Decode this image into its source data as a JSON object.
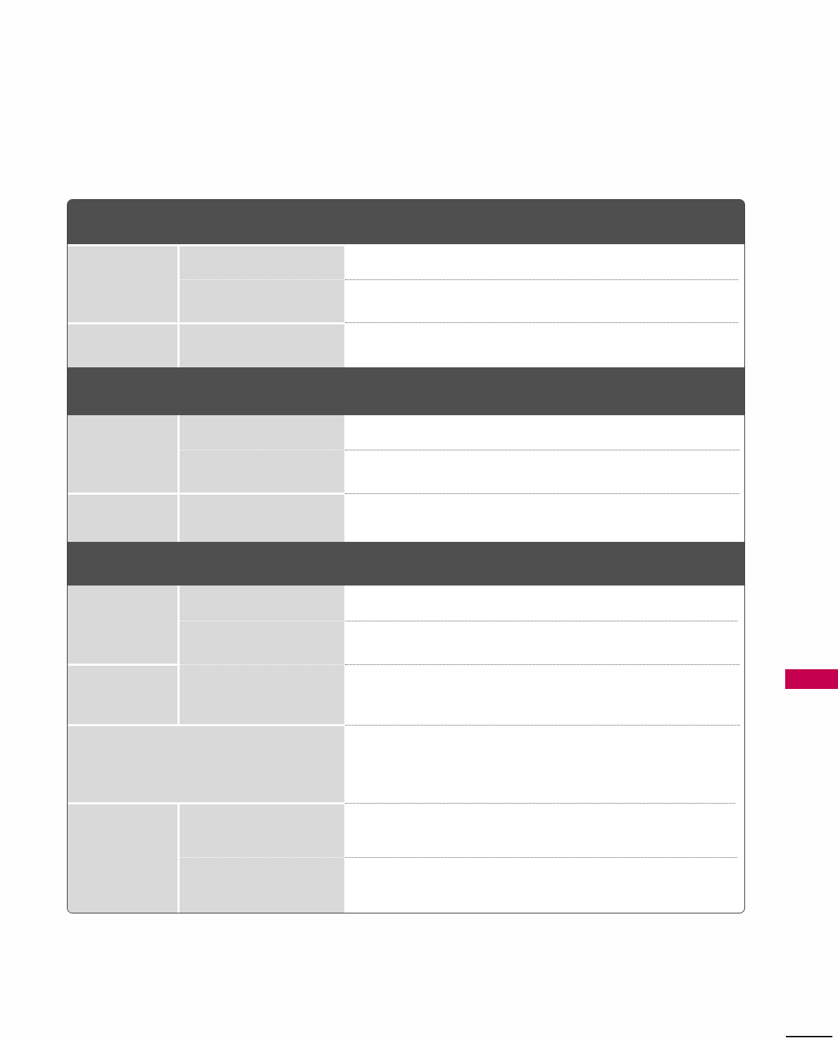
{
  "colors": {
    "section_header": "#4f4f4f",
    "label_cell": "#d9d9d9",
    "chapter_tab": "#c4004f"
  }
}
